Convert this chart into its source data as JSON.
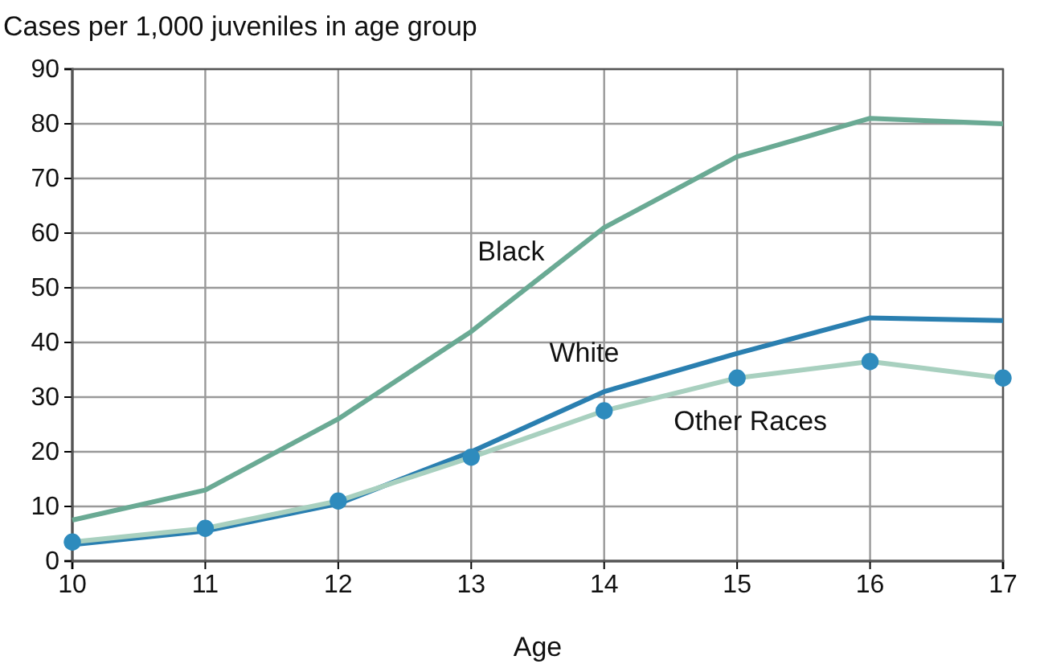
{
  "chart_data": {
    "type": "line",
    "ylabel": "Cases per 1,000 juveniles in age group",
    "xlabel": "Age",
    "x": [
      10,
      11,
      12,
      13,
      14,
      15,
      16,
      17
    ],
    "xlim": [
      10,
      17
    ],
    "xticks": [
      10,
      11,
      12,
      13,
      14,
      15,
      16,
      17
    ],
    "ylim": [
      0,
      90
    ],
    "yticks": [
      0,
      10,
      20,
      30,
      40,
      50,
      60,
      70,
      80,
      90
    ],
    "grid": true,
    "series": [
      {
        "name": "Black",
        "color": "#6aaa94",
        "values": [
          7.5,
          13,
          26,
          42,
          61,
          74,
          81,
          80
        ]
      },
      {
        "name": "White",
        "color": "#2a7fb0",
        "values": [
          3,
          5.5,
          10.5,
          20,
          31,
          38,
          44.5,
          44
        ]
      },
      {
        "name": "Other Races",
        "color": "#a8d0bf",
        "values": [
          3.5,
          6,
          11,
          19,
          27.5,
          33.5,
          36.5,
          33.5
        ]
      },
      {
        "type": "scatter",
        "marker": "circle",
        "color": "#2e8bbd",
        "values": [
          3.5,
          6,
          11,
          19,
          27.5,
          33.5,
          36.5,
          33.5
        ]
      }
    ]
  }
}
